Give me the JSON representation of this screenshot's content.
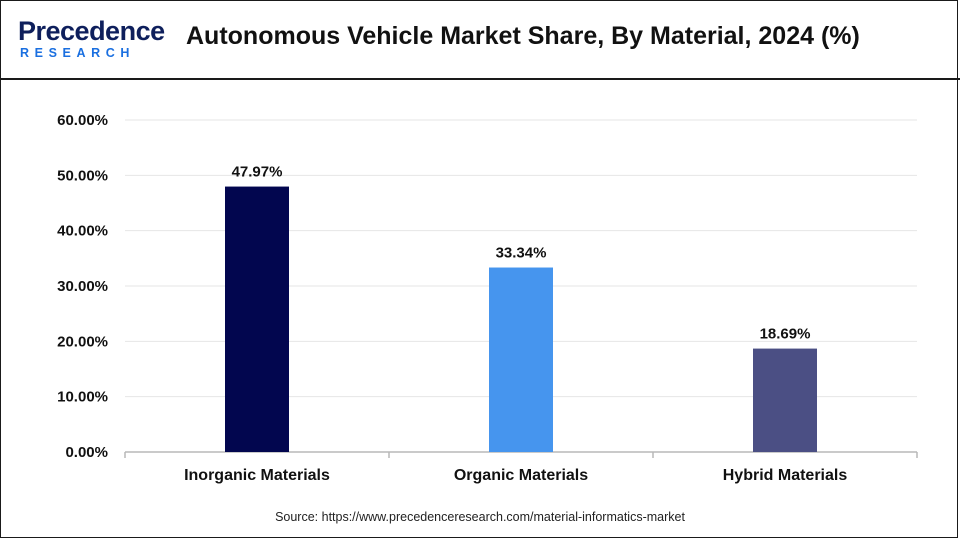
{
  "header": {
    "logo_top": "Precedence",
    "logo_bottom": "RESEARCH",
    "title": "Autonomous Vehicle Market Share, By Material, 2024 (%)"
  },
  "source": "Source: https://www.precedenceresearch.com/material-informatics-market",
  "chart_data": {
    "type": "bar",
    "title": "Autonomous Vehicle Market Share, By Material, 2024 (%)",
    "categories": [
      "Inorganic Materials",
      "Organic Materials",
      "Hybrid Materials"
    ],
    "values": [
      47.97,
      33.34,
      18.69
    ],
    "data_labels": [
      "47.97%",
      "33.34%",
      "18.69%"
    ],
    "bar_colors": [
      "#02064f",
      "#4695ee",
      "#4b4f84"
    ],
    "xlabel": "",
    "ylabel": "",
    "ylim": [
      0,
      60
    ],
    "yticks": [
      0,
      10,
      20,
      30,
      40,
      50,
      60
    ],
    "ytick_labels": [
      "0.00%",
      "10.00%",
      "20.00%",
      "30.00%",
      "40.00%",
      "50.00%",
      "60.00%"
    ],
    "grid": true,
    "legend": "none"
  }
}
